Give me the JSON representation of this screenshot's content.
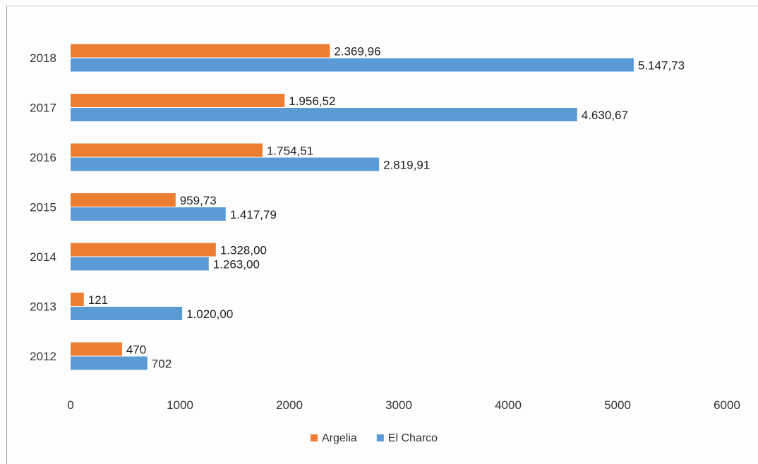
{
  "chart_data": {
    "type": "bar",
    "orientation": "horizontal",
    "categories": [
      "2018",
      "2017",
      "2016",
      "2015",
      "2014",
      "2013",
      "2012"
    ],
    "series": [
      {
        "name": "Argelia",
        "color": "#ED7D31",
        "values": [
          2369.96,
          1956.52,
          1754.51,
          959.73,
          1328.0,
          121,
          470
        ],
        "labels": [
          "2.369,96",
          "1.956,52",
          "1.754,51",
          "959,73",
          "1.328,00",
          "121",
          "470"
        ]
      },
      {
        "name": "El Charco",
        "color": "#5B9BD5",
        "values": [
          5147.73,
          4630.67,
          2819.91,
          1417.79,
          1263.0,
          1020.0,
          702
        ],
        "labels": [
          "5.147,73",
          "4.630,67",
          "2.819,91",
          "1.417,79",
          "1.263,00",
          "1.020,00",
          "702"
        ]
      }
    ],
    "xlim": [
      0,
      6000
    ],
    "xticks": [
      0,
      1000,
      2000,
      3000,
      4000,
      5000,
      6000
    ],
    "xtick_labels": [
      "0",
      "1000",
      "2000",
      "3000",
      "4000",
      "5000",
      "6000"
    ],
    "grid": false,
    "legend_position": "bottom",
    "title": "",
    "xlabel": "",
    "ylabel": ""
  }
}
